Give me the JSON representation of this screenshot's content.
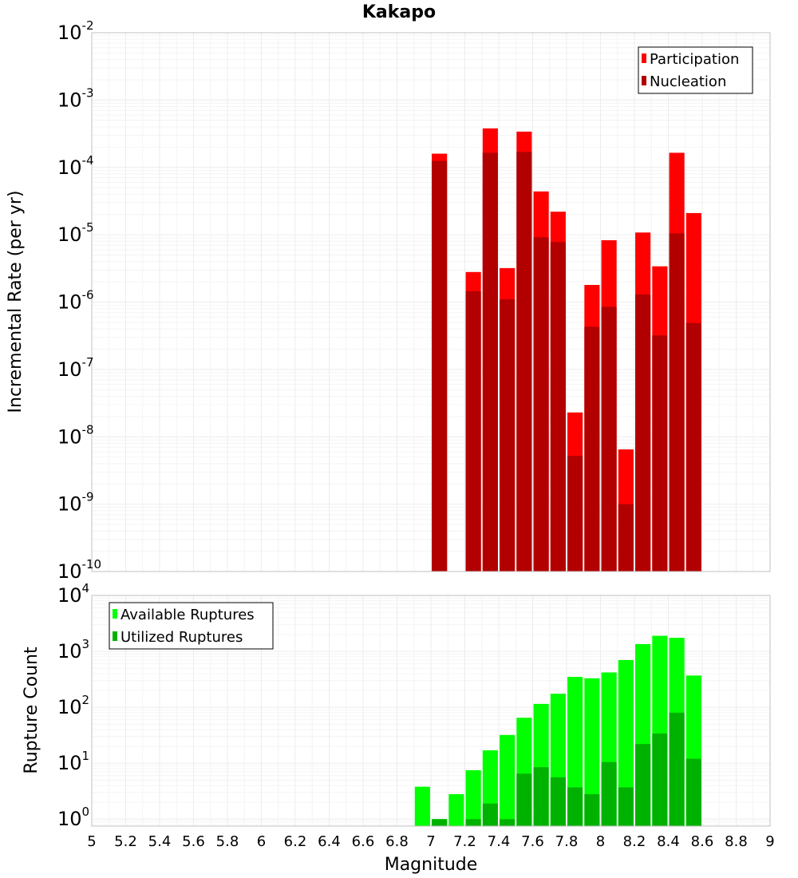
{
  "chart_data": [
    {
      "type": "bar",
      "title": "Kakapo",
      "xlabel": "",
      "ylabel": "Incremental Rate (per yr)",
      "yscale": "log",
      "ylim": [
        1e-10,
        0.01
      ],
      "xlim": [
        5,
        9
      ],
      "ytick_exponents": [
        "-10",
        "-9",
        "-8",
        "-7",
        "-6",
        "-5",
        "-4",
        "-3",
        "-2"
      ],
      "grid": true,
      "legend_position": "top-right",
      "bar_width": 0.09,
      "series": [
        {
          "name": "Participation",
          "color": "#ff0000",
          "x": [
            7.05,
            7.25,
            7.35,
            7.45,
            7.55,
            7.65,
            7.75,
            7.85,
            7.95,
            8.05,
            8.15,
            8.25,
            8.35,
            8.45,
            8.55
          ],
          "values": [
            0.00016,
            2.8e-06,
            0.00038,
            3.2e-06,
            0.00034,
            4.4e-05,
            2.2e-05,
            2.3e-08,
            1.8e-06,
            8.3e-06,
            6.5e-09,
            1.08e-05,
            3.4e-06,
            0.000165,
            2.1e-05
          ]
        },
        {
          "name": "Nucleation",
          "color": "#b20000",
          "x": [
            7.05,
            7.25,
            7.35,
            7.45,
            7.55,
            7.65,
            7.75,
            7.85,
            7.95,
            8.05,
            8.15,
            8.25,
            8.35,
            8.45,
            8.55
          ],
          "values": [
            0.000125,
            1.45e-06,
            0.000165,
            1.1e-06,
            0.00017,
            9.2e-06,
            7.8e-06,
            5.2e-09,
            4.3e-07,
            8.5e-07,
            1e-09,
            1.3e-06,
            3.2e-07,
            1.05e-05,
            4.9e-07
          ]
        }
      ]
    },
    {
      "type": "bar",
      "title": "",
      "xlabel": "Magnitude",
      "ylabel": "Rupture Count",
      "yscale": "log",
      "ylim": [
        0.75,
        10000
      ],
      "xlim": [
        5,
        9
      ],
      "ytick_exponents": [
        "0",
        "1",
        "2",
        "3",
        "4"
      ],
      "grid": true,
      "legend_position": "top-left",
      "bar_width": 0.09,
      "x_tick_labels": [
        "5",
        "5.2",
        "5.4",
        "5.6",
        "5.8",
        "6",
        "6.2",
        "6.4",
        "6.6",
        "6.8",
        "7",
        "7.2",
        "7.4",
        "7.6",
        "7.8",
        "8",
        "8.2",
        "8.4",
        "8.6",
        "8.8",
        "9"
      ],
      "series": [
        {
          "name": "Available Ruptures",
          "color": "#00ff00",
          "x": [
            6.95,
            7.05,
            7.15,
            7.25,
            7.35,
            7.45,
            7.55,
            7.65,
            7.75,
            7.85,
            7.95,
            8.05,
            8.15,
            8.25,
            8.35,
            8.45,
            8.55
          ],
          "values": [
            3.8,
            1,
            2.8,
            7.5,
            17,
            32,
            65,
            115,
            175,
            350,
            330,
            420,
            700,
            1350,
            1900,
            1750,
            370
          ]
        },
        {
          "name": "Utilized Ruptures",
          "color": "#00b200",
          "x": [
            7.05,
            7.25,
            7.35,
            7.45,
            7.55,
            7.65,
            7.75,
            7.85,
            7.95,
            8.05,
            8.15,
            8.25,
            8.35,
            8.45,
            8.55
          ],
          "values": [
            1,
            1,
            1.9,
            1,
            6.5,
            8.5,
            5.6,
            3.7,
            2.8,
            10.5,
            3.7,
            22,
            34,
            80,
            12
          ]
        }
      ]
    }
  ]
}
